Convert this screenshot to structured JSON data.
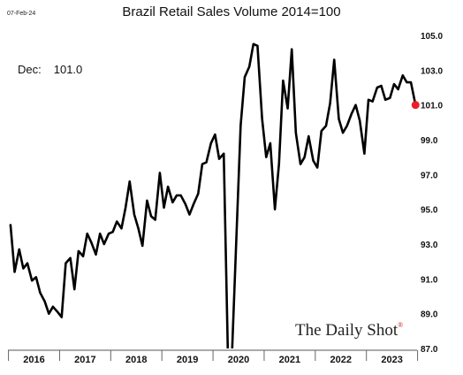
{
  "header": {
    "date": "07-Feb-24",
    "title": "Brazil Retail Sales Volume 2014=100",
    "annotation_label": "Dec:",
    "annotation_value": "101.0",
    "watermark": "The Daily Shot",
    "watermark_mark": "®"
  },
  "chart_data": {
    "type": "line",
    "title": "Brazil Retail Sales Volume 2014=100",
    "xlabel": "",
    "ylabel": "",
    "x_categories": [
      "2016",
      "2017",
      "2018",
      "2019",
      "2020",
      "2021",
      "2022",
      "2023"
    ],
    "x_range": [
      2015.95,
      2023.95
    ],
    "ylim": [
      87.0,
      105.0
    ],
    "y_ticks": [
      "105.0",
      "103.0",
      "101.0",
      "99.0",
      "97.0",
      "95.0",
      "93.0",
      "91.0",
      "89.0",
      "87.0"
    ],
    "grid": false,
    "series": [
      {
        "color": "#000000",
        "end_marker_color": "#e8202a",
        "points": [
          [
            2016.0,
            94.1
          ],
          [
            2016.08,
            91.4
          ],
          [
            2016.17,
            92.7
          ],
          [
            2016.25,
            91.6
          ],
          [
            2016.33,
            91.9
          ],
          [
            2016.42,
            90.9
          ],
          [
            2016.5,
            91.1
          ],
          [
            2016.58,
            90.2
          ],
          [
            2016.67,
            89.7
          ],
          [
            2016.75,
            89.0
          ],
          [
            2016.83,
            89.4
          ],
          [
            2016.92,
            89.1
          ],
          [
            2017.0,
            88.8
          ],
          [
            2017.08,
            91.9
          ],
          [
            2017.17,
            92.2
          ],
          [
            2017.25,
            90.4
          ],
          [
            2017.33,
            92.6
          ],
          [
            2017.42,
            92.3
          ],
          [
            2017.5,
            93.6
          ],
          [
            2017.58,
            93.1
          ],
          [
            2017.67,
            92.4
          ],
          [
            2017.75,
            93.6
          ],
          [
            2017.83,
            93.0
          ],
          [
            2017.92,
            93.6
          ],
          [
            2018.0,
            93.7
          ],
          [
            2018.08,
            94.3
          ],
          [
            2018.17,
            93.9
          ],
          [
            2018.25,
            95.1
          ],
          [
            2018.33,
            96.6
          ],
          [
            2018.42,
            94.7
          ],
          [
            2018.5,
            93.9
          ],
          [
            2018.58,
            92.9
          ],
          [
            2018.67,
            95.5
          ],
          [
            2018.75,
            94.6
          ],
          [
            2018.83,
            94.4
          ],
          [
            2018.92,
            97.1
          ],
          [
            2019.0,
            95.1
          ],
          [
            2019.08,
            96.3
          ],
          [
            2019.17,
            95.4
          ],
          [
            2019.25,
            95.8
          ],
          [
            2019.33,
            95.8
          ],
          [
            2019.42,
            95.3
          ],
          [
            2019.5,
            94.7
          ],
          [
            2019.58,
            95.3
          ],
          [
            2019.67,
            95.9
          ],
          [
            2019.75,
            97.6
          ],
          [
            2019.83,
            97.7
          ],
          [
            2019.92,
            98.8
          ],
          [
            2020.0,
            99.3
          ],
          [
            2020.08,
            97.9
          ],
          [
            2020.17,
            98.2
          ],
          [
            2020.25,
            86.8
          ],
          [
            2020.33,
            86.6
          ],
          [
            2020.42,
            93.6
          ],
          [
            2020.5,
            99.8
          ],
          [
            2020.58,
            102.6
          ],
          [
            2020.67,
            103.2
          ],
          [
            2020.75,
            104.5
          ],
          [
            2020.83,
            104.4
          ],
          [
            2020.92,
            100.2
          ],
          [
            2021.0,
            98.0
          ],
          [
            2021.08,
            98.8
          ],
          [
            2021.17,
            95.0
          ],
          [
            2021.25,
            97.6
          ],
          [
            2021.33,
            102.4
          ],
          [
            2021.42,
            100.8
          ],
          [
            2021.5,
            104.2
          ],
          [
            2021.58,
            99.4
          ],
          [
            2021.67,
            97.6
          ],
          [
            2021.75,
            98.0
          ],
          [
            2021.83,
            99.2
          ],
          [
            2021.92,
            97.8
          ],
          [
            2022.0,
            97.4
          ],
          [
            2022.08,
            99.5
          ],
          [
            2022.17,
            99.8
          ],
          [
            2022.25,
            101.1
          ],
          [
            2022.33,
            103.6
          ],
          [
            2022.42,
            100.2
          ],
          [
            2022.5,
            99.4
          ],
          [
            2022.58,
            99.8
          ],
          [
            2022.67,
            100.5
          ],
          [
            2022.75,
            101.0
          ],
          [
            2022.83,
            100.1
          ],
          [
            2022.92,
            98.2
          ],
          [
            2023.0,
            101.3
          ],
          [
            2023.08,
            101.2
          ],
          [
            2023.17,
            102.0
          ],
          [
            2023.25,
            102.1
          ],
          [
            2023.33,
            101.3
          ],
          [
            2023.42,
            101.4
          ],
          [
            2023.5,
            102.2
          ],
          [
            2023.58,
            101.9
          ],
          [
            2023.67,
            102.7
          ],
          [
            2023.75,
            102.3
          ],
          [
            2023.83,
            102.3
          ],
          [
            2023.92,
            101.0
          ]
        ]
      }
    ],
    "annotations": [
      "Dec:",
      "101.0"
    ]
  }
}
